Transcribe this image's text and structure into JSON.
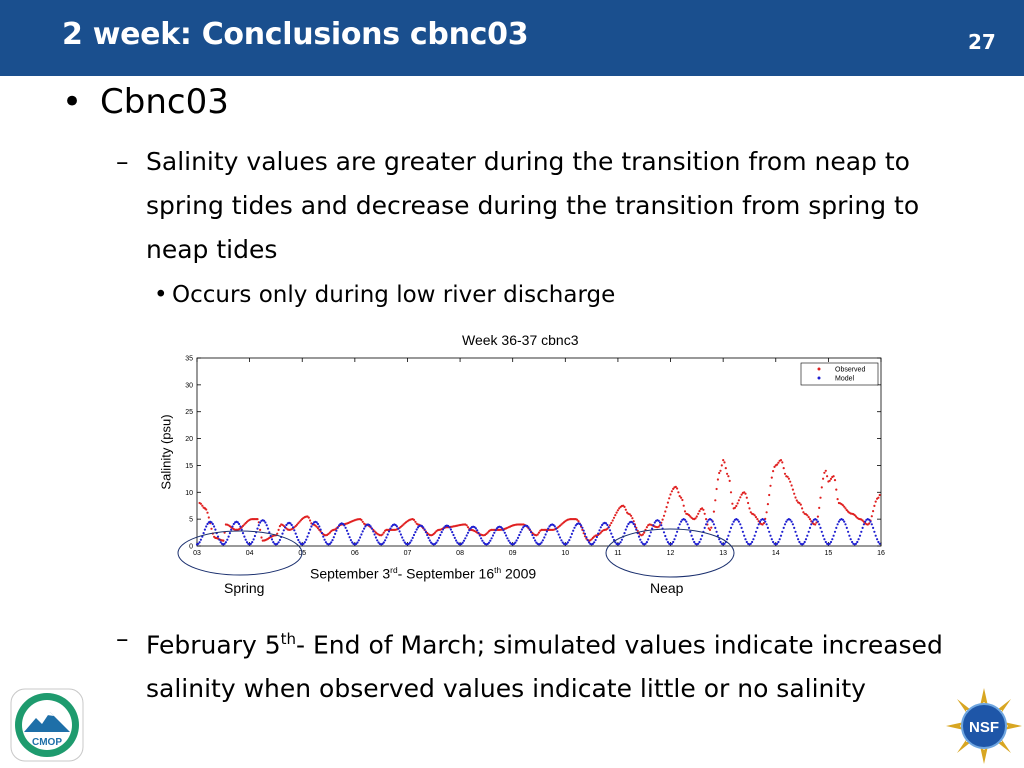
{
  "header": {
    "title": "2 week: Conclusions cbnc03",
    "slide_number": "27",
    "bg": "#1a4f8e"
  },
  "content": {
    "bullet1": "Cbnc03",
    "sub1": "Salinity values are greater during the transition from neap to spring tides and decrease during the transition from spring to neap tides",
    "sub1_detail": "Occurs only during low river discharge",
    "sub2_pre": "February 5",
    "sub2_sup": "th",
    "sub2_post": "- End of March; simulated values indicate increased salinity when observed values indicate little or no salinity"
  },
  "chart_data": {
    "type": "scatter",
    "title": "Week 36-37 cbnc3",
    "ylabel": "Salinity (psu)",
    "xlabel_parts": [
      "September 3",
      "rd",
      "- September 16",
      "th",
      " 2009"
    ],
    "x_ticks": [
      "03",
      "04",
      "05",
      "06",
      "07",
      "08",
      "09",
      "10",
      "11",
      "12",
      "13",
      "14",
      "15",
      "16"
    ],
    "y_ticks": [
      0,
      5,
      10,
      15,
      20,
      25,
      30,
      35
    ],
    "xlim": [
      3,
      16
    ],
    "ylim": [
      0,
      35
    ],
    "legend": {
      "position": "top-right",
      "entries": [
        "Observed",
        "Model"
      ]
    },
    "colors": {
      "Observed": "#e02020",
      "Model": "#1f1fd0"
    },
    "annotations": [
      "Spring",
      "Neap"
    ],
    "series": [
      {
        "name": "Observed",
        "x": [
          3.05,
          3.15,
          3.35,
          3.5,
          3.55,
          3.75,
          4.05,
          4.15,
          4.25,
          4.5,
          4.6,
          4.75,
          5.1,
          5.2,
          5.45,
          5.6,
          5.75,
          6.1,
          6.2,
          6.5,
          6.6,
          6.75,
          7.1,
          7.2,
          7.45,
          7.6,
          7.75,
          8.1,
          8.2,
          8.45,
          8.6,
          8.75,
          9.1,
          9.2,
          9.45,
          9.55,
          9.75,
          10.1,
          10.2,
          10.45,
          10.6,
          10.75,
          11.1,
          11.2,
          11.45,
          11.6,
          11.75,
          12.1,
          12.2,
          12.3,
          12.45,
          12.6,
          12.75,
          12.95,
          13.0,
          13.1,
          13.2,
          13.4,
          13.55,
          13.75,
          14.0,
          14.1,
          14.2,
          14.45,
          14.55,
          14.75,
          14.95,
          15.0,
          15.1,
          15.2,
          15.45,
          15.6,
          15.75,
          16.0,
          15.95
        ],
        "y": [
          8,
          7,
          1.5,
          1,
          4,
          3,
          5,
          5,
          1,
          2,
          4,
          3,
          5.5,
          4,
          2,
          3,
          4,
          5,
          4,
          2,
          3,
          3,
          5,
          4,
          2,
          3,
          3.5,
          4,
          3,
          2,
          3,
          3,
          4,
          4,
          2,
          3,
          3,
          5,
          5,
          1,
          2,
          3,
          7.5,
          6,
          2,
          4,
          3.5,
          11,
          9,
          6,
          5,
          7,
          3,
          14,
          16,
          13,
          7,
          10,
          6,
          4,
          15,
          16,
          13,
          8,
          6,
          4,
          14,
          12,
          13,
          8,
          6,
          5,
          4,
          10,
          9
        ]
      },
      {
        "name": "Model",
        "x": [
          3.0,
          3.25,
          3.5,
          3.75,
          4.0,
          4.25,
          4.5,
          4.75,
          5.0,
          5.25,
          5.5,
          5.75,
          6.0,
          6.25,
          6.5,
          6.75,
          7.0,
          7.25,
          7.5,
          7.75,
          8.0,
          8.25,
          8.5,
          8.75,
          9.0,
          9.25,
          9.5,
          9.75,
          10.0,
          10.25,
          10.5,
          10.75,
          11.0,
          11.25,
          11.5,
          11.75,
          12.0,
          12.25,
          12.5,
          12.75,
          13.0,
          13.25,
          13.5,
          13.75,
          14.0,
          14.25,
          14.5,
          14.75,
          15.0,
          15.25,
          15.5,
          15.75,
          16.0
        ],
        "y": [
          0.3,
          4.5,
          0.3,
          4.5,
          0.3,
          4.8,
          0.3,
          4.3,
          0.3,
          4.5,
          0.3,
          4.2,
          0.3,
          4.0,
          0.3,
          4.0,
          0.3,
          3.8,
          0.3,
          3.8,
          0.3,
          3.6,
          0.3,
          3.6,
          0.3,
          3.8,
          0.3,
          4.0,
          0.3,
          4.2,
          0.3,
          4.3,
          0.3,
          4.5,
          0.3,
          4.8,
          0.3,
          5.0,
          0.3,
          5.0,
          0.3,
          5.0,
          0.3,
          5.0,
          0.3,
          5.0,
          0.3,
          5.0,
          0.3,
          5.0,
          0.3,
          5.0,
          0.3
        ]
      }
    ]
  },
  "logos": {
    "left": "CMOP",
    "right": "NSF"
  }
}
